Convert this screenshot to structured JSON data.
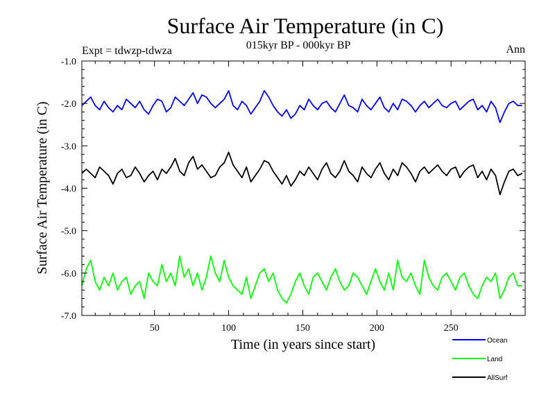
{
  "chart_data": {
    "type": "line",
    "title": "Surface Air Temperature (in C)",
    "subtitle": "015kyr BP - 000kyr BP",
    "experiment_label": "Expt = tdwzp-tdwza",
    "season_label": "Ann",
    "xlabel": "Time (in years since start)",
    "ylabel": "Surface Air Temperature (in C)",
    "xlim": [
      1,
      300
    ],
    "ylim": [
      -7.0,
      -1.0
    ],
    "x_ticks": [
      50,
      100,
      150,
      200,
      250
    ],
    "x_tick_labels": [
      "50",
      "100",
      "150",
      "200",
      "250"
    ],
    "y_ticks": [
      -1.0,
      -2.0,
      -3.0,
      -4.0,
      -5.0,
      -6.0,
      -7.0
    ],
    "y_tick_labels": [
      "-1.0",
      "-2.0",
      "-3.0",
      "-4.0",
      "-5.0",
      "-6.0",
      "-7.0"
    ],
    "grid": false,
    "legend_position": "bottom-right, below plot",
    "x": {
      "start": 1,
      "end": 300,
      "step": 3
    },
    "series": [
      {
        "name": "Ocean",
        "color": "#0000ff",
        "values": [
          -2.05,
          -1.95,
          -1.85,
          -2.05,
          -2.15,
          -1.95,
          -2.1,
          -2.2,
          -2.05,
          -2.15,
          -1.9,
          -2.0,
          -2.1,
          -1.95,
          -2.15,
          -2.25,
          -2.05,
          -1.9,
          -1.95,
          -2.2,
          -2.1,
          -1.85,
          -1.95,
          -2.05,
          -1.9,
          -1.75,
          -2.0,
          -1.8,
          -1.85,
          -2.0,
          -2.1,
          -2.0,
          -1.9,
          -1.7,
          -2.05,
          -2.15,
          -1.95,
          -2.05,
          -2.25,
          -2.1,
          -1.95,
          -1.7,
          -1.85,
          -2.05,
          -2.2,
          -2.3,
          -2.15,
          -2.35,
          -2.25,
          -2.05,
          -2.15,
          -1.9,
          -2.05,
          -2.15,
          -2.0,
          -1.95,
          -2.1,
          -2.2,
          -2.0,
          -1.8,
          -2.05,
          -2.1,
          -2.2,
          -1.9,
          -2.05,
          -2.15,
          -2.0,
          -1.85,
          -2.1,
          -2.2,
          -2.0,
          -2.15,
          -1.9,
          -1.95,
          -2.05,
          -2.2,
          -2.05,
          -1.95,
          -2.1,
          -2.0,
          -1.9,
          -2.05,
          -2.1,
          -2.0,
          -1.95,
          -2.15,
          -2.05,
          -1.95,
          -1.9,
          -2.15,
          -2.05,
          -2.2,
          -1.95,
          -2.1,
          -2.45,
          -2.2,
          -2.0,
          -1.95,
          -2.05,
          -2.05
        ]
      },
      {
        "name": "Land",
        "color": "#00ff00",
        "values": [
          -6.3,
          -5.9,
          -5.7,
          -6.2,
          -6.4,
          -6.1,
          -6.3,
          -6.0,
          -6.4,
          -6.2,
          -6.1,
          -6.5,
          -6.3,
          -6.2,
          -6.6,
          -6.0,
          -6.2,
          -6.3,
          -5.8,
          -6.2,
          -6.0,
          -6.3,
          -5.6,
          -6.1,
          -5.9,
          -6.3,
          -6.0,
          -6.4,
          -6.1,
          -5.6,
          -6.0,
          -6.2,
          -5.7,
          -6.1,
          -6.3,
          -6.4,
          -6.5,
          -6.1,
          -6.6,
          -6.3,
          -6.0,
          -5.9,
          -6.2,
          -6.0,
          -6.4,
          -6.6,
          -6.7,
          -6.5,
          -6.2,
          -6.0,
          -6.3,
          -6.5,
          -6.1,
          -6.0,
          -6.2,
          -6.4,
          -6.1,
          -5.9,
          -6.2,
          -6.4,
          -6.3,
          -6.0,
          -6.1,
          -6.3,
          -6.5,
          -6.2,
          -5.9,
          -6.2,
          -6.4,
          -6.0,
          -6.4,
          -5.7,
          -6.1,
          -6.2,
          -6.0,
          -6.3,
          -6.5,
          -5.7,
          -6.1,
          -6.3,
          -6.4,
          -6.1,
          -6.0,
          -6.2,
          -6.4,
          -6.1,
          -6.0,
          -6.3,
          -6.5,
          -6.6,
          -6.3,
          -6.1,
          -6.2,
          -6.0,
          -6.6,
          -6.4,
          -6.1,
          -6.0,
          -6.3,
          -6.3
        ]
      },
      {
        "name": "AllSurf",
        "color": "#000000",
        "values": [
          -3.65,
          -3.55,
          -3.65,
          -3.75,
          -3.5,
          -3.6,
          -3.7,
          -3.9,
          -3.65,
          -3.55,
          -3.75,
          -3.7,
          -3.5,
          -3.65,
          -3.85,
          -3.7,
          -3.6,
          -3.8,
          -3.55,
          -3.65,
          -3.5,
          -3.3,
          -3.6,
          -3.7,
          -3.4,
          -3.25,
          -3.55,
          -3.45,
          -3.6,
          -3.75,
          -3.7,
          -3.5,
          -3.4,
          -3.15,
          -3.45,
          -3.6,
          -3.75,
          -3.5,
          -3.85,
          -3.7,
          -3.55,
          -3.35,
          -3.4,
          -3.6,
          -3.75,
          -3.9,
          -3.7,
          -3.95,
          -3.8,
          -3.6,
          -3.7,
          -3.5,
          -3.65,
          -3.8,
          -3.55,
          -3.4,
          -3.65,
          -3.75,
          -3.6,
          -3.35,
          -3.6,
          -3.7,
          -3.85,
          -3.5,
          -3.65,
          -3.75,
          -3.55,
          -3.4,
          -3.65,
          -3.8,
          -3.55,
          -3.7,
          -3.4,
          -3.5,
          -3.65,
          -3.85,
          -3.6,
          -3.5,
          -3.65,
          -3.55,
          -3.45,
          -3.6,
          -3.7,
          -3.55,
          -3.5,
          -3.75,
          -3.6,
          -3.5,
          -3.45,
          -3.75,
          -3.6,
          -3.8,
          -3.55,
          -3.7,
          -4.15,
          -3.85,
          -3.6,
          -3.55,
          -3.7,
          -3.65
        ]
      }
    ]
  }
}
